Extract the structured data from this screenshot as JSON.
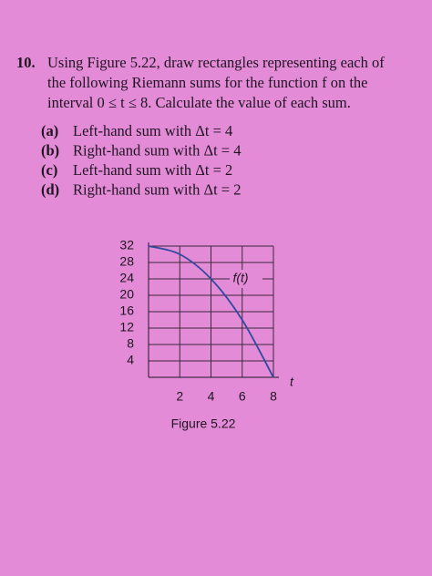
{
  "problem": {
    "number": "10.",
    "lines": [
      "Using Figure 5.22, draw rectangles representing each of",
      "the following Riemann sums for the function f on the",
      "interval 0 ≤ t ≤ 8. Calculate the value of each sum."
    ],
    "parts": [
      {
        "label": "(a)",
        "text": "Left-hand sum with Δt = 4"
      },
      {
        "label": "(b)",
        "text": "Right-hand sum with Δt = 4"
      },
      {
        "label": "(c)",
        "text": "Left-hand sum with Δt = 2"
      },
      {
        "label": "(d)",
        "text": "Right-hand sum with Δt = 2"
      }
    ]
  },
  "chart_data": {
    "type": "line",
    "x": [
      0,
      2,
      4,
      6,
      8
    ],
    "series": [
      {
        "name": "f(t)",
        "color": "#2f4a9e",
        "values": [
          32,
          30,
          24,
          14,
          0
        ]
      }
    ],
    "xlim": [
      0,
      8
    ],
    "ylim": [
      0,
      32
    ],
    "xticks": [
      2,
      4,
      6,
      8
    ],
    "yticks": [
      4,
      8,
      12,
      16,
      20,
      24,
      28,
      32
    ],
    "grid": true,
    "xlabel": "t",
    "caption": "Figure 5.22"
  }
}
